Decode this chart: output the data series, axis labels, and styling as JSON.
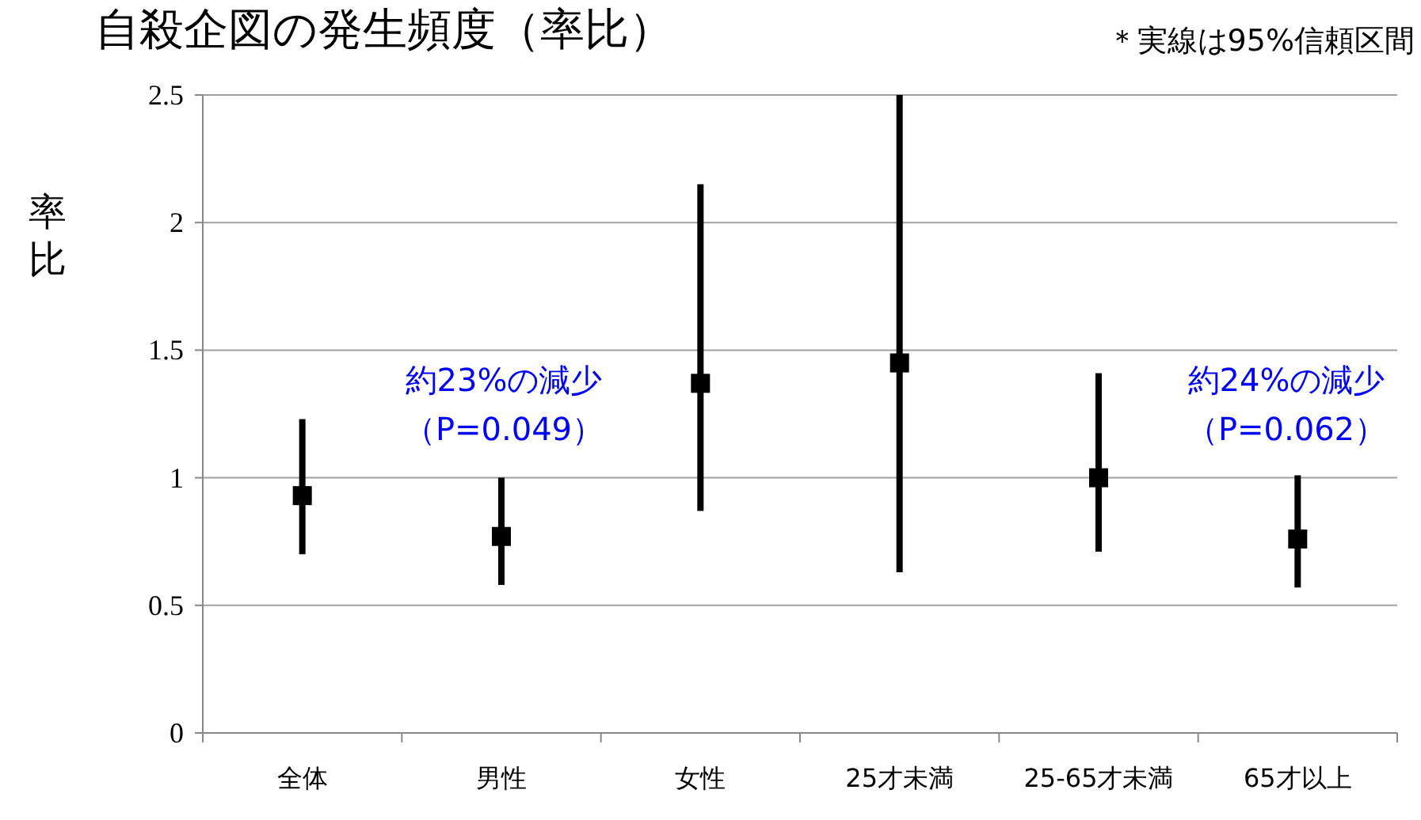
{
  "chart_data": {
    "type": "scatter",
    "title": "自殺企図の発生頻度（率比）",
    "ylabel": "率比",
    "categories": [
      "全体",
      "男性",
      "女性",
      "25才未満",
      "25-65才未満",
      "65才以上"
    ],
    "series": [
      {
        "color": "#000000",
        "values": [
          0.93,
          0.77,
          1.37,
          1.45,
          1.0,
          0.76
        ],
        "errors": [
          [
            0.7,
            1.23
          ],
          [
            0.58,
            1.0
          ],
          [
            0.87,
            2.15
          ],
          [
            0.63,
            2.5
          ],
          [
            0.71,
            1.41
          ],
          [
            0.57,
            1.01
          ]
        ]
      }
    ],
    "ylim": [
      0,
      2.5
    ],
    "yticks": [
      0,
      0.5,
      1,
      1.5,
      2,
      2.5
    ],
    "grid": "y",
    "marker": "square",
    "annotations": [
      "＊実線は95%信頼区間",
      "約23%の減少",
      "（P=0.049）",
      "約24%の減少",
      "（P=0.062）"
    ]
  }
}
